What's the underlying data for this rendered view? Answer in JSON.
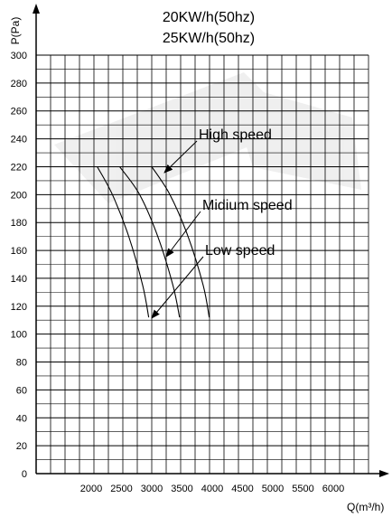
{
  "chart_data": {
    "type": "line",
    "title": [
      "20KW/h(50hz)",
      "25KW/h(50hz)"
    ],
    "xlabel": "Q(m³/h)",
    "ylabel": "P(Pa)",
    "xlim": [
      1000,
      6500
    ],
    "ylim": [
      0,
      300
    ],
    "x_ticks": [
      2000,
      2500,
      3000,
      3500,
      4000,
      4500,
      5000,
      5500,
      6000
    ],
    "y_ticks": [
      0,
      20,
      40,
      60,
      80,
      100,
      120,
      140,
      160,
      180,
      200,
      220,
      240,
      260,
      280,
      300
    ],
    "grid": true,
    "series": [
      {
        "name": "Low speed",
        "x": [
          2100,
          2350,
          2620,
          2850,
          2950
        ],
        "y": [
          220,
          200,
          170,
          135,
          112
        ]
      },
      {
        "name": "Midium speed",
        "x": [
          2470,
          2800,
          3100,
          3350,
          3460
        ],
        "y": [
          220,
          200,
          170,
          135,
          112
        ]
      },
      {
        "name": "High speed",
        "x": [
          3000,
          3300,
          3600,
          3850,
          3950
        ],
        "y": [
          220,
          200,
          170,
          135,
          112
        ]
      }
    ],
    "annotations": [
      {
        "text": "High speed",
        "target": [
          3100,
          218
        ]
      },
      {
        "text": "Midium speed",
        "target": [
          3150,
          158
        ]
      },
      {
        "text": "Low speed",
        "target": [
          2950,
          113
        ]
      }
    ]
  }
}
